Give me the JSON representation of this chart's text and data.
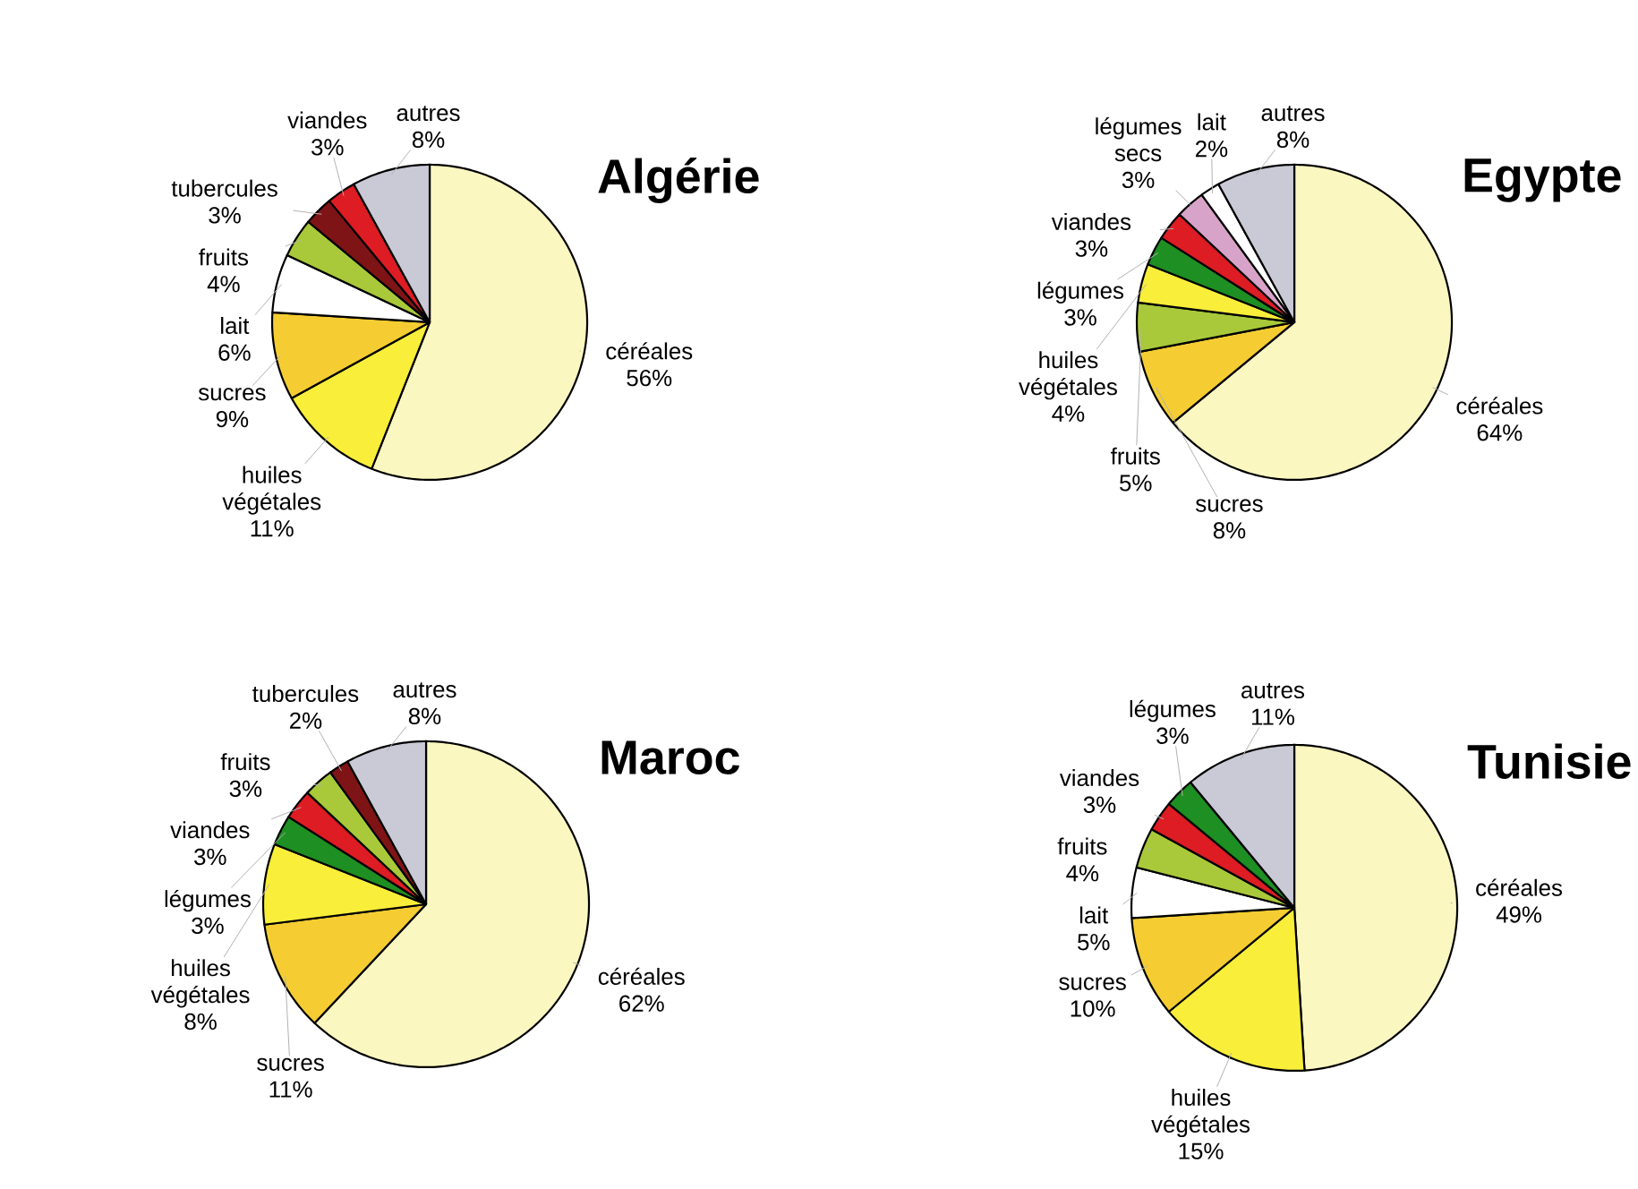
{
  "chart_data": [
    {
      "type": "pie",
      "title": "Algérie",
      "categories": [
        "céréales",
        "huiles végétales",
        "sucres",
        "lait",
        "fruits",
        "tubercules",
        "viandes",
        "autres"
      ],
      "values": [
        56,
        11,
        9,
        6,
        4,
        3,
        3,
        8
      ],
      "value_labels": [
        "56%",
        "11%",
        "9%",
        "6%",
        "4%",
        "3%",
        "3%",
        "8%"
      ],
      "colors": [
        "#fbf7c0",
        "#f9ee3a",
        "#f5cd32",
        "#ffffff",
        "#a9c93a",
        "#7f1416",
        "#dd1c24",
        "#c9cad6"
      ]
    },
    {
      "type": "pie",
      "title": "Egypte",
      "categories": [
        "céréales",
        "sucres",
        "fruits",
        "huiles végétales",
        "légumes",
        "viandes",
        "légumes secs",
        "lait",
        "autres"
      ],
      "values": [
        64,
        8,
        5,
        4,
        3,
        3,
        3,
        2,
        8
      ],
      "value_labels": [
        "64%",
        "8%",
        "5%",
        "4%",
        "3%",
        "3%",
        "3%",
        "2%",
        "8%"
      ],
      "colors": [
        "#fbf7c0",
        "#f5cd32",
        "#a9c93a",
        "#f9ee3a",
        "#1e8f22",
        "#dd1c24",
        "#d8a3c8",
        "#ffffff",
        "#c9cad6"
      ]
    },
    {
      "type": "pie",
      "title": "Maroc",
      "categories": [
        "céréales",
        "sucres",
        "huiles végétales",
        "légumes",
        "viandes",
        "fruits",
        "tubercules",
        "autres"
      ],
      "values": [
        62,
        11,
        8,
        3,
        3,
        3,
        2,
        8
      ],
      "value_labels": [
        "62%",
        "11%",
        "8%",
        "3%",
        "3%",
        "3%",
        "2%",
        "8%"
      ],
      "colors": [
        "#fbf7c0",
        "#f5cd32",
        "#f9ee3a",
        "#1e8f22",
        "#dd1c24",
        "#a9c93a",
        "#7f1416",
        "#c9cad6"
      ]
    },
    {
      "type": "pie",
      "title": "Tunisie",
      "categories": [
        "céréales",
        "huiles végétales",
        "sucres",
        "lait",
        "fruits",
        "viandes",
        "légumes",
        "autres"
      ],
      "values": [
        49,
        15,
        10,
        5,
        4,
        3,
        3,
        11
      ],
      "value_labels": [
        "49%",
        "15%",
        "10%",
        "5%",
        "4%",
        "3%",
        "3%",
        "11%"
      ],
      "colors": [
        "#fbf7c0",
        "#f9ee3a",
        "#f5cd32",
        "#ffffff",
        "#a9c93a",
        "#dd1c24",
        "#1e8f22",
        "#c9cad6"
      ]
    }
  ]
}
